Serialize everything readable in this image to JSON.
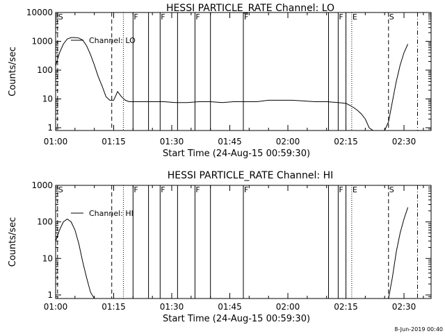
{
  "chart_data": [
    {
      "type": "line",
      "title": "HESSI PARTICLE_RATE Channel: LO",
      "xlabel": "Start Time (24-Aug-15 00:59:30)",
      "ylabel": "Counts/sec",
      "y_scale": "log",
      "xlim": [
        0,
        97
      ],
      "ylim": [
        0.8,
        10000
      ],
      "x_ticks": [
        0,
        15,
        30,
        45,
        60,
        75,
        90
      ],
      "x_tick_labels": [
        "01:00",
        "01:15",
        "01:30",
        "01:45",
        "02:00",
        "02:15",
        "02:30"
      ],
      "y_ticks": [
        1,
        10,
        100,
        1000,
        10000
      ],
      "y_tick_labels": [
        "1",
        "10",
        "100",
        "1000",
        "10000"
      ],
      "legend": {
        "label": "Channel: LO",
        "position": "top-left"
      },
      "series": [
        {
          "name": "Channel: LO",
          "x": [
            0,
            1,
            2,
            3,
            4,
            5,
            6,
            7,
            8,
            9,
            10,
            11,
            12,
            13,
            14,
            15,
            16,
            17,
            18,
            19,
            20,
            22,
            25,
            28,
            31,
            34,
            37,
            40,
            43,
            46,
            49,
            52,
            55,
            58,
            61,
            64,
            67,
            70,
            73,
            75,
            76,
            77,
            78,
            79,
            80,
            81,
            82,
            83,
            84,
            85,
            86,
            87,
            88,
            89,
            90,
            91
          ],
          "y": [
            140,
            400,
            800,
            1200,
            1350,
            1350,
            1300,
            1100,
            700,
            350,
            150,
            60,
            28,
            12,
            9,
            9,
            18,
            12,
            9,
            8,
            8,
            8,
            8,
            8,
            7.5,
            7.5,
            8,
            8,
            7.5,
            8,
            8,
            8,
            9,
            9,
            9,
            8.5,
            8,
            8,
            7.5,
            7,
            6,
            5,
            4,
            3,
            2,
            1,
            0.8,
            0.8,
            0.8,
            0.8,
            1.6,
            8,
            40,
            150,
            400,
            800
          ]
        }
      ]
    },
    {
      "type": "line",
      "title": "HESSI PARTICLE_RATE Channel: HI",
      "xlabel": "Start Time (24-Aug-15 00:59:30)",
      "ylabel": "Counts/sec",
      "y_scale": "log",
      "xlim": [
        0,
        97
      ],
      "ylim": [
        0.8,
        1000
      ],
      "x_ticks": [
        0,
        15,
        30,
        45,
        60,
        75,
        90
      ],
      "x_tick_labels": [
        "01:00",
        "01:15",
        "01:30",
        "01:45",
        "02:00",
        "02:15",
        "02:30"
      ],
      "y_ticks": [
        1,
        10,
        100,
        1000
      ],
      "y_tick_labels": [
        "1",
        "10",
        "100",
        "1000"
      ],
      "legend": {
        "label": "Channel: HI",
        "position": "top-left"
      },
      "series": [
        {
          "name": "Channel: HI",
          "x": [
            0,
            1,
            2,
            3,
            4,
            5,
            6,
            7,
            8,
            9,
            10,
            11,
            86,
            87,
            88,
            89,
            90,
            91
          ],
          "y": [
            30,
            60,
            100,
            120,
            100,
            60,
            25,
            8,
            3,
            1.2,
            0.8,
            0.8,
            0.8,
            3,
            15,
            50,
            120,
            250
          ]
        }
      ]
    }
  ],
  "event_markers": [
    {
      "x": 0.5,
      "label": "S",
      "style": "dash"
    },
    {
      "x": 14.5,
      "label": "",
      "style": "dash"
    },
    {
      "x": 17.5,
      "label": "",
      "style": "dot"
    },
    {
      "x": 20,
      "label": "F",
      "style": "solid"
    },
    {
      "x": 24,
      "label": "",
      "style": "solid"
    },
    {
      "x": 27,
      "label": "F",
      "style": "solid"
    },
    {
      "x": 31.5,
      "label": "",
      "style": "solid"
    },
    {
      "x": 36,
      "label": "F",
      "style": "solid"
    },
    {
      "x": 40,
      "label": "",
      "style": "solid"
    },
    {
      "x": 48.5,
      "label": "F",
      "style": "solid"
    },
    {
      "x": 70.5,
      "label": "",
      "style": "solid"
    },
    {
      "x": 73,
      "label": "F",
      "style": "solid"
    },
    {
      "x": 75,
      "label": "",
      "style": "solid"
    },
    {
      "x": 76.5,
      "label": "E",
      "style": "dot"
    },
    {
      "x": 86,
      "label": "S",
      "style": "dash"
    },
    {
      "x": 93.5,
      "label": "",
      "style": "dashdot"
    }
  ],
  "footer": {
    "stamp": "8-Jun-2019 00:40"
  }
}
